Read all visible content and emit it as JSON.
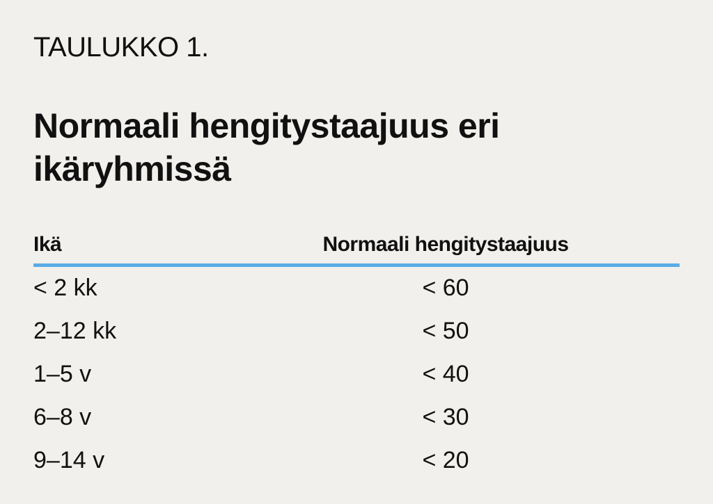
{
  "label": "TAULUKKO 1.",
  "title": "Normaali hengitystaajuus eri ikäryhmissä",
  "table": {
    "headers": [
      "Ikä",
      "Normaali hengitystaajuus"
    ],
    "rows": [
      [
        "< 2 kk",
        "< 60"
      ],
      [
        "2–12 kk",
        "< 50"
      ],
      [
        "1–5 v",
        "< 40"
      ],
      [
        "6–8 v",
        "< 30"
      ],
      [
        "9–14 v",
        "< 20"
      ]
    ]
  },
  "colors": {
    "rule": "#5aace6",
    "background": "#f1f0ec"
  }
}
